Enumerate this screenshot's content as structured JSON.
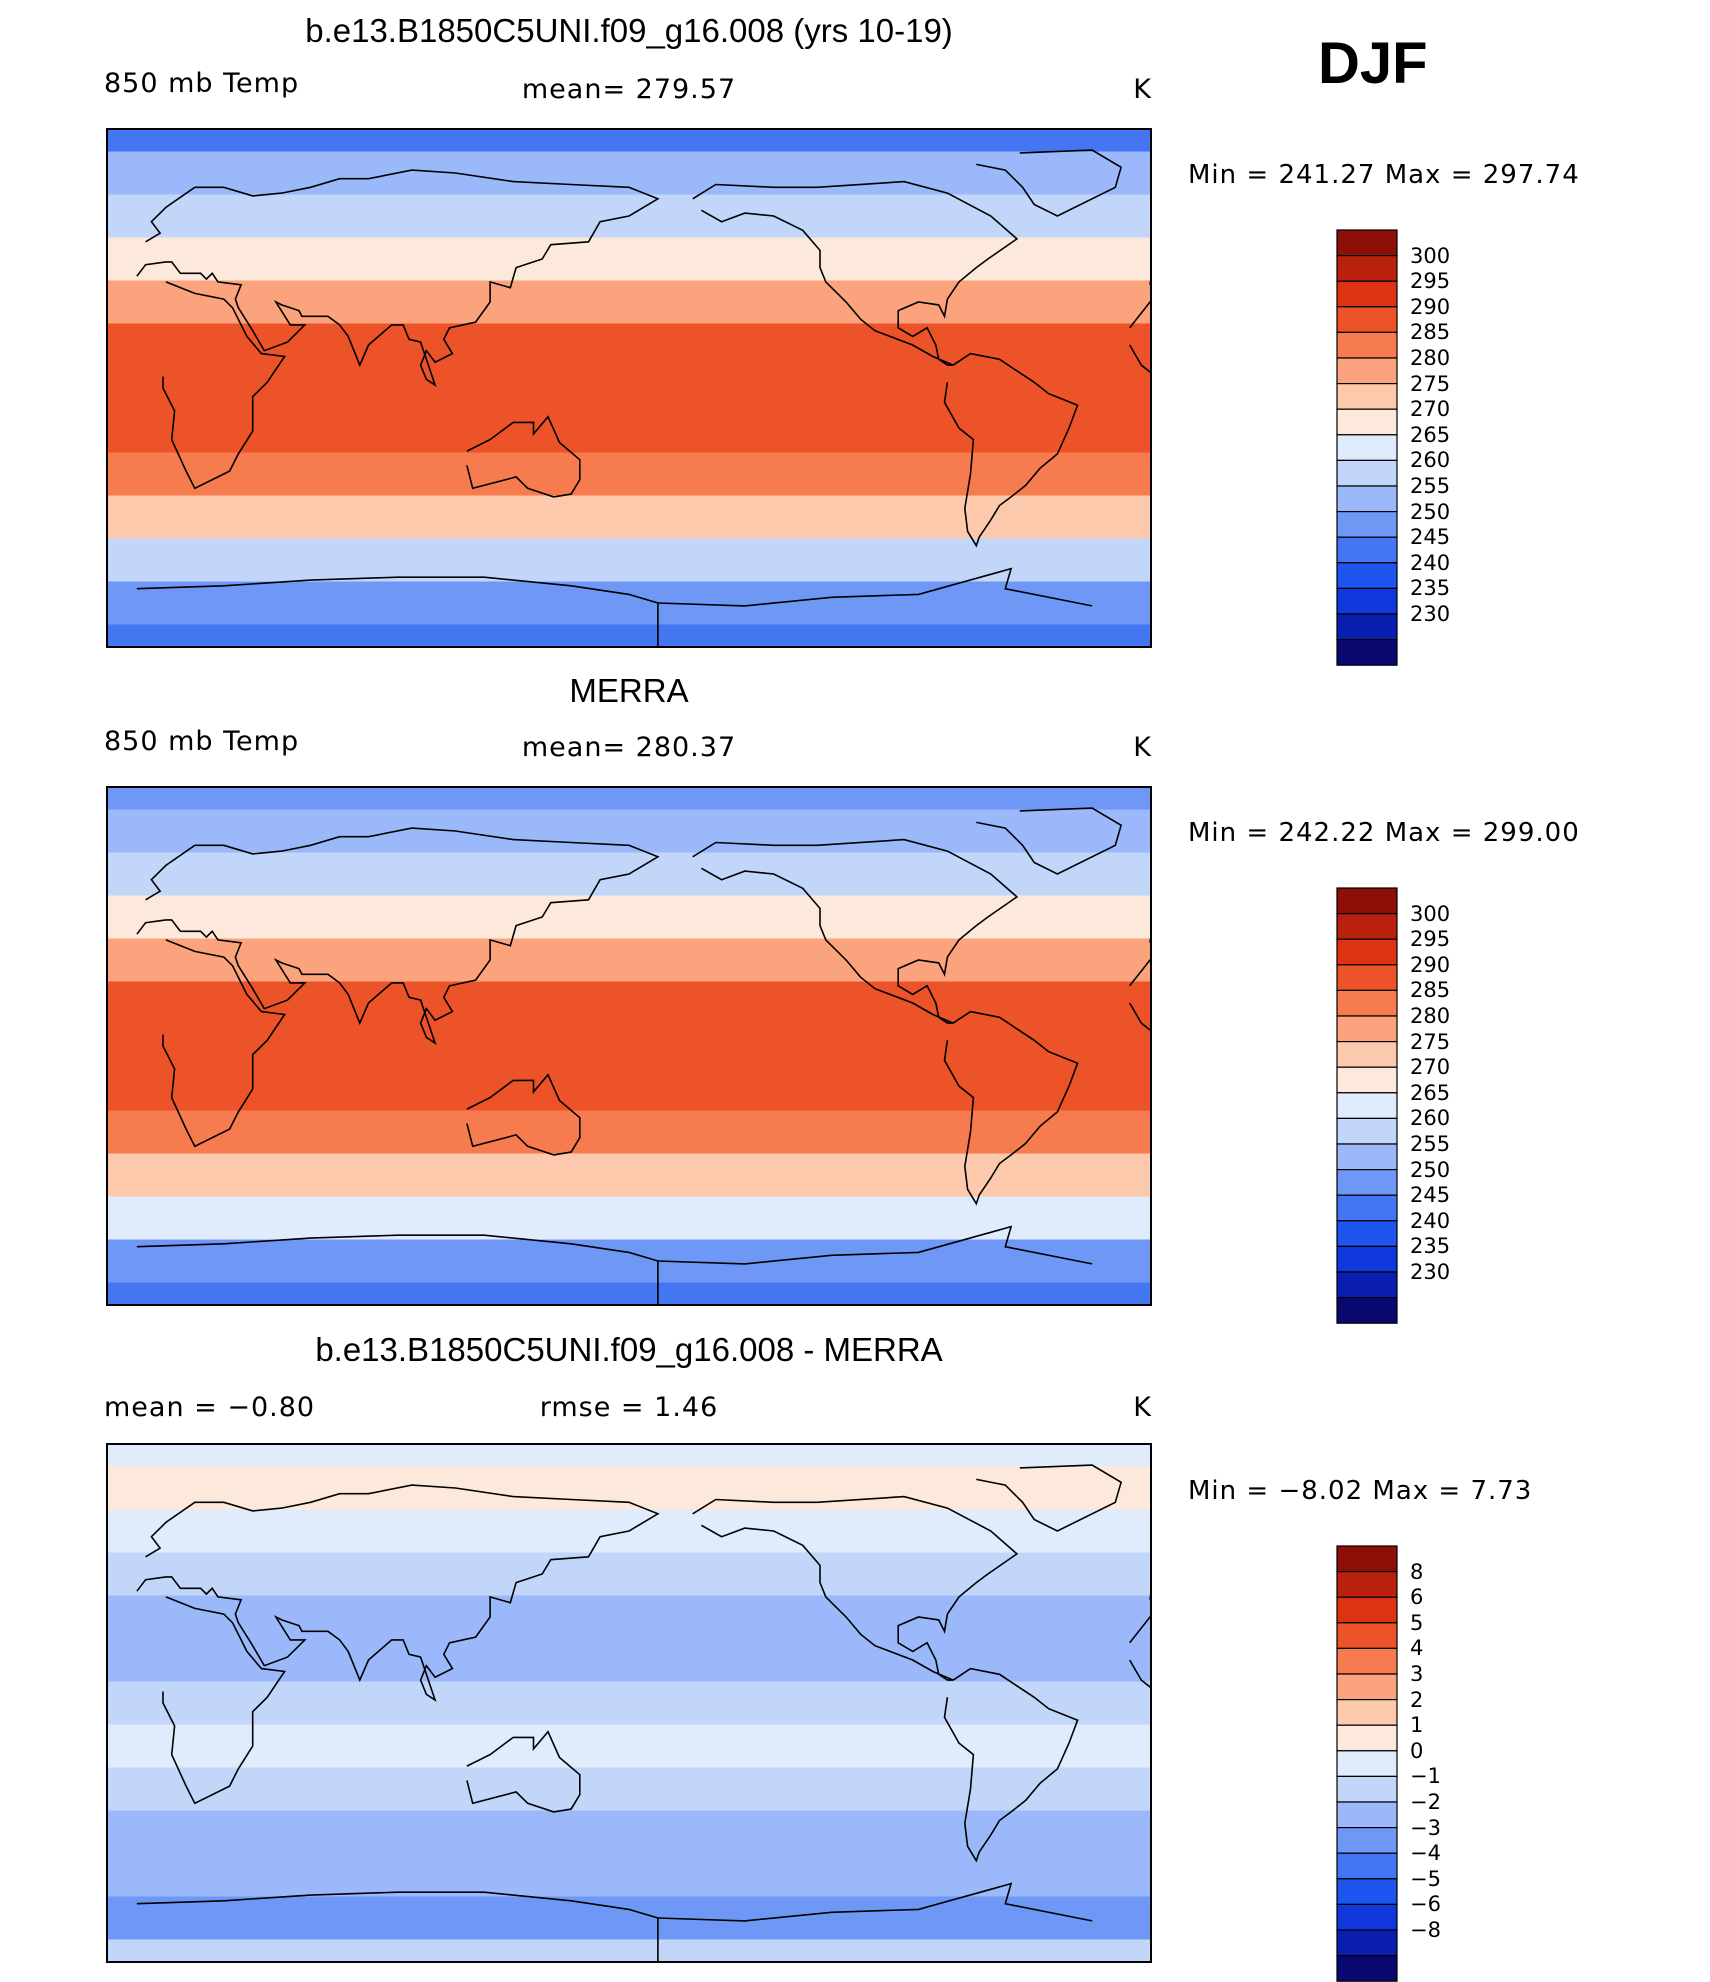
{
  "season": "DJF",
  "units": "K",
  "palettes": {
    "abs": [
      "#08086e",
      "#0a1fae",
      "#0f38dd",
      "#1e55ef",
      "#4576f2",
      "#6f98f6",
      "#9ab8fa",
      "#c2d6f9",
      "#e0ecfb",
      "#fde9dc",
      "#fdc9ad",
      "#fba37d",
      "#f67b4e",
      "#ec5328",
      "#dc3412",
      "#b9200e",
      "#8e0f07"
    ],
    "diff": [
      "#08086e",
      "#0a1fae",
      "#0f38dd",
      "#1e55ef",
      "#4576f2",
      "#6f98f6",
      "#9ab8fa",
      "#c2d6f9",
      "#e0ecfb",
      "#fde9dc",
      "#fdc9ad",
      "#fba37d",
      "#f67b4e",
      "#ec5328",
      "#dc3412",
      "#b9200e",
      "#8e0f07"
    ]
  },
  "panels": [
    {
      "title": "b.e13.B1850C5UNI.f09_g16.008 (yrs 10-19)",
      "left_label": "850 mb Temp",
      "center_label": "mean= 279.57",
      "right_label": "K",
      "minmax": "Min  =  241.27  Max  =  297.74",
      "colorbar_labels": [
        "300",
        "295",
        "290",
        "285",
        "280",
        "275",
        "270",
        "265",
        "260",
        "255",
        "250",
        "245",
        "240",
        "235",
        "230"
      ]
    },
    {
      "title": "MERRA",
      "left_label": "850 mb Temp",
      "center_label": "mean= 280.37",
      "right_label": "K",
      "minmax": "Min  =  242.22  Max  =  299.00",
      "colorbar_labels": [
        "300",
        "295",
        "290",
        "285",
        "280",
        "275",
        "270",
        "265",
        "260",
        "255",
        "250",
        "245",
        "240",
        "235",
        "230"
      ]
    },
    {
      "title": "b.e13.B1850C5UNI.f09_g16.008 - MERRA",
      "left_label": "mean  =    −0.80",
      "center_label": "rmse  =     1.46",
      "right_label": "K",
      "minmax": "Min  =    −8.02  Max  =      7.73",
      "colorbar_labels": [
        "8",
        "6",
        "5",
        "4",
        "3",
        "2",
        "1",
        "0",
        "−1",
        "−2",
        "−3",
        "−4",
        "−5",
        "−6",
        "−8"
      ]
    }
  ],
  "chart_data": [
    {
      "type": "heatmap",
      "title": "b.e13.B1850C5UNI.f09_g16.008 (yrs 10-19)",
      "field": "850 mb Temp",
      "units": "K",
      "mean": 279.57,
      "min": 241.27,
      "max": 297.74,
      "levels": [
        230,
        235,
        240,
        245,
        250,
        255,
        260,
        265,
        270,
        275,
        280,
        285,
        290,
        295,
        300
      ],
      "latitude_bands": [
        {
          "lat": 90,
          "value": 249
        },
        {
          "lat": 75,
          "value": 255
        },
        {
          "lat": 60,
          "value": 262
        },
        {
          "lat": 45,
          "value": 272
        },
        {
          "lat": 30,
          "value": 282
        },
        {
          "lat": 15,
          "value": 290
        },
        {
          "lat": 0,
          "value": 293
        },
        {
          "lat": -15,
          "value": 292
        },
        {
          "lat": -30,
          "value": 285
        },
        {
          "lat": -45,
          "value": 276
        },
        {
          "lat": -60,
          "value": 264
        },
        {
          "lat": -75,
          "value": 253
        },
        {
          "lat": -90,
          "value": 246
        }
      ]
    },
    {
      "type": "heatmap",
      "title": "MERRA",
      "field": "850 mb Temp",
      "units": "K",
      "mean": 280.37,
      "min": 242.22,
      "max": 299.0,
      "levels": [
        230,
        235,
        240,
        245,
        250,
        255,
        260,
        265,
        270,
        275,
        280,
        285,
        290,
        295,
        300
      ],
      "latitude_bands": [
        {
          "lat": 90,
          "value": 250
        },
        {
          "lat": 75,
          "value": 255
        },
        {
          "lat": 60,
          "value": 263
        },
        {
          "lat": 45,
          "value": 273
        },
        {
          "lat": 30,
          "value": 284
        },
        {
          "lat": 15,
          "value": 291
        },
        {
          "lat": 0,
          "value": 294
        },
        {
          "lat": -15,
          "value": 293
        },
        {
          "lat": -30,
          "value": 286
        },
        {
          "lat": -45,
          "value": 277
        },
        {
          "lat": -60,
          "value": 265
        },
        {
          "lat": -75,
          "value": 254
        },
        {
          "lat": -90,
          "value": 247
        }
      ]
    },
    {
      "type": "heatmap",
      "title": "b.e13.B1850C5UNI.f09_g16.008 - MERRA",
      "units": "K",
      "mean": -0.8,
      "rmse": 1.46,
      "min": -8.02,
      "max": 7.73,
      "levels": [
        -8,
        -6,
        -5,
        -4,
        -3,
        -2,
        -1,
        0,
        1,
        2,
        3,
        4,
        5,
        6,
        8
      ],
      "latitude_bands": [
        {
          "lat": 90,
          "value": 0.5
        },
        {
          "lat": 75,
          "value": 1.0
        },
        {
          "lat": 60,
          "value": 0.3
        },
        {
          "lat": 45,
          "value": -0.8
        },
        {
          "lat": 30,
          "value": -1.5
        },
        {
          "lat": 15,
          "value": -1.2
        },
        {
          "lat": 0,
          "value": -0.6
        },
        {
          "lat": -15,
          "value": 0.2
        },
        {
          "lat": -30,
          "value": -1.0
        },
        {
          "lat": -45,
          "value": -1.6
        },
        {
          "lat": -60,
          "value": -1.8
        },
        {
          "lat": -75,
          "value": -2.2
        },
        {
          "lat": -90,
          "value": -1.0
        }
      ]
    }
  ]
}
